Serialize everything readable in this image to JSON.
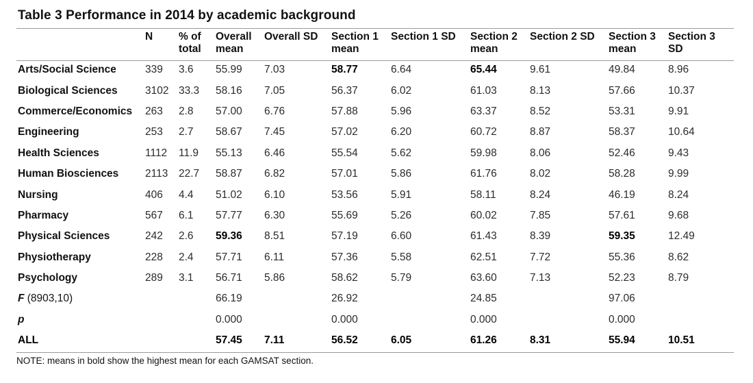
{
  "title": "Table 3 Performance in 2014 by academic background",
  "headers": [
    "",
    "N",
    "% of total",
    "Overall mean",
    "Overall SD",
    "Section 1 mean",
    "Section 1 SD",
    "Section 2 mean",
    "Section 2 SD",
    "Section 3 mean",
    "Section 3 SD"
  ],
  "rows": [
    {
      "label": "Arts/Social Science",
      "cells": [
        "339",
        "3.6",
        "55.99",
        "7.03",
        "58.77",
        "6.64",
        "65.44",
        "9.61",
        "49.84",
        "8.96"
      ],
      "bold": [
        4,
        6
      ]
    },
    {
      "label": "Biological Sciences",
      "cells": [
        "3102",
        "33.3",
        "58.16",
        "7.05",
        "56.37",
        "6.02",
        "61.03",
        "8.13",
        "57.66",
        "10.37"
      ],
      "bold": []
    },
    {
      "label": "Commerce/Economics",
      "cells": [
        "263",
        "2.8",
        "57.00",
        "6.76",
        "57.88",
        "5.96",
        "63.37",
        "8.52",
        "53.31",
        "9.91"
      ],
      "bold": []
    },
    {
      "label": "Engineering",
      "cells": [
        "253",
        "2.7",
        "58.67",
        "7.45",
        "57.02",
        "6.20",
        "60.72",
        "8.87",
        "58.37",
        "10.64"
      ],
      "bold": []
    },
    {
      "label": "Health Sciences",
      "cells": [
        "1112",
        "11.9",
        "55.13",
        "6.46",
        "55.54",
        "5.62",
        "59.98",
        "8.06",
        "52.46",
        "9.43"
      ],
      "bold": []
    },
    {
      "label": "Human Biosciences",
      "cells": [
        "2113",
        "22.7",
        "58.87",
        "6.82",
        "57.01",
        "5.86",
        "61.76",
        "8.02",
        "58.28",
        "9.99"
      ],
      "bold": []
    },
    {
      "label": "Nursing",
      "cells": [
        "406",
        "4.4",
        "51.02",
        "6.10",
        "53.56",
        "5.91",
        "58.11",
        "8.24",
        "46.19",
        "8.24"
      ],
      "bold": []
    },
    {
      "label": "Pharmacy",
      "cells": [
        "567",
        "6.1",
        "57.77",
        "6.30",
        "55.69",
        "5.26",
        "60.02",
        "7.85",
        "57.61",
        "9.68"
      ],
      "bold": []
    },
    {
      "label": "Physical Sciences",
      "cells": [
        "242",
        "2.6",
        "59.36",
        "8.51",
        "57.19",
        "6.60",
        "61.43",
        "8.39",
        "59.35",
        "12.49"
      ],
      "bold": [
        2,
        8
      ]
    },
    {
      "label": "Physiotherapy",
      "cells": [
        "228",
        "2.4",
        "57.71",
        "6.11",
        "57.36",
        "5.58",
        "62.51",
        "7.72",
        "55.36",
        "8.62"
      ],
      "bold": []
    },
    {
      "label": "Psychology",
      "cells": [
        "289",
        "3.1",
        "56.71",
        "5.86",
        "58.62",
        "5.79",
        "63.60",
        "7.13",
        "52.23",
        "8.79"
      ],
      "bold": []
    }
  ],
  "stats": [
    {
      "label": "F",
      "sub": " (8903,10)",
      "cells": [
        "",
        "",
        "66.19",
        "",
        "26.92",
        "",
        "24.85",
        "",
        "97.06",
        ""
      ]
    },
    {
      "label": "p",
      "sub": "",
      "cells": [
        "",
        "",
        "0.000",
        "",
        "0.000",
        "",
        "0.000",
        "",
        "0.000",
        ""
      ]
    }
  ],
  "all": {
    "label": "ALL",
    "cells": [
      "",
      "",
      "57.45",
      "7.11",
      "56.52",
      "6.05",
      "61.26",
      "8.31",
      "55.94",
      "10.51"
    ]
  },
  "note": "NOTE: means in bold show the highest mean for each GAMSAT section."
}
